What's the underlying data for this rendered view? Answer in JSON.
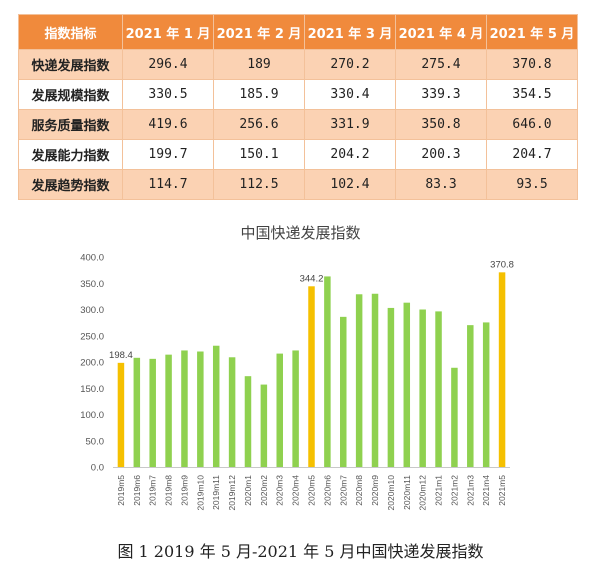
{
  "table": {
    "corner_header": "指数指标",
    "columns": [
      "2021 年 1 月",
      "2021 年 2 月",
      "2021 年 3 月",
      "2021 年 4 月",
      "2021 年 5 月"
    ],
    "rows": [
      {
        "label": "快递发展指数",
        "values": [
          "296.4",
          "189",
          "270.2",
          "275.4",
          "370.8"
        ]
      },
      {
        "label": "发展规模指数",
        "values": [
          "330.5",
          "185.9",
          "330.4",
          "339.3",
          "354.5"
        ]
      },
      {
        "label": "服务质量指数",
        "values": [
          "419.6",
          "256.6",
          "331.9",
          "350.8",
          "646.0"
        ]
      },
      {
        "label": "发展能力指数",
        "values": [
          "199.7",
          "150.1",
          "204.2",
          "200.3",
          "204.7"
        ]
      },
      {
        "label": "发展趋势指数",
        "values": [
          "114.7",
          "112.5",
          "102.4",
          "83.3",
          "93.5"
        ]
      }
    ]
  },
  "colors": {
    "header_bg": "#f08a3c",
    "odd_row_bg": "#fbd2b3",
    "bar_green": "#8fd14f",
    "bar_yellow": "#f5c000"
  },
  "chart_data": {
    "type": "bar",
    "title": "中国快递发展指数",
    "categories": [
      "2019m5",
      "2019m6",
      "2019m7",
      "2019m8",
      "2019m9",
      "2019m10",
      "2019m11",
      "2019m12",
      "2020m1",
      "2020m2",
      "2020m3",
      "2020m4",
      "2020m5",
      "2020m6",
      "2020m7",
      "2020m8",
      "2020m9",
      "2020m10",
      "2020m11",
      "2020m12",
      "2021m1",
      "2021m2",
      "2021m3",
      "2021m4",
      "2021m5"
    ],
    "values": [
      198.4,
      208,
      206,
      214,
      222,
      220,
      231,
      209,
      173,
      157,
      216,
      222,
      344.2,
      363,
      286,
      329,
      330,
      303,
      313,
      300,
      296.4,
      189,
      270.2,
      275.4,
      370.8
    ],
    "highlighted": [
      "2019m5",
      "2020m5",
      "2021m5"
    ],
    "data_labels": [
      {
        "category": "2019m5",
        "text": "198.4"
      },
      {
        "category": "2020m5",
        "text": "344.2"
      },
      {
        "category": "2021m5",
        "text": "370.8"
      }
    ],
    "y_ticks": [
      "0.0",
      "50.0",
      "100.0",
      "150.0",
      "200.0",
      "250.0",
      "300.0",
      "350.0",
      "400.0"
    ],
    "ylim": [
      0,
      400
    ],
    "xlabel": "",
    "ylabel": "",
    "grid": false,
    "legend": "none"
  },
  "caption": "图 1 2019 年 5 月-2021 年 5 月中国快递发展指数"
}
